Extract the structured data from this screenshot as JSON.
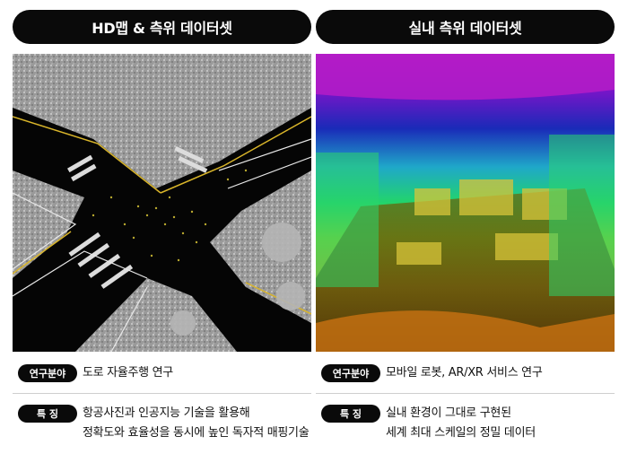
{
  "left": {
    "title": "HD맵 & 측위 데이터셋",
    "research_tag": "연구분야",
    "research_text": "도로 자율주행 연구",
    "feature_tag": "특    징",
    "feature_lines": [
      "항공사진과 인공지능 기술을 활용해",
      "정확도와 효율성을 동시에 높인 독자적 매핑기술"
    ]
  },
  "right": {
    "title": "실내 측위 데이터셋",
    "research_tag": "연구분야",
    "research_text": "모바일 로봇, AR/XR 서비스 연구",
    "feature_tag": "특    징",
    "feature_lines": [
      "실내 환경이 그대로 구현된",
      "세계 최대 스케일의 정밀 데이터"
    ]
  }
}
